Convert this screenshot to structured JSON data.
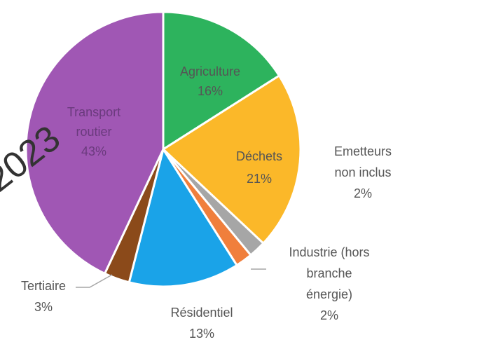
{
  "chart_data": {
    "type": "pie",
    "title": "",
    "slices": [
      {
        "name": "Agriculture",
        "value": 16,
        "label_lines": [
          "Agriculture",
          "16%"
        ],
        "color": "#2db35d",
        "label_color": "#555555"
      },
      {
        "name": "Déchets",
        "value": 21,
        "label_lines": [
          "Déchets",
          "21%"
        ],
        "color": "#fbb829",
        "label_color": "#555555"
      },
      {
        "name": "Emetteurs non inclus",
        "value": 2,
        "label_lines": [
          "Emetteurs",
          "non inclus",
          "2%"
        ],
        "color": "#a6a6a6",
        "label_color": "#555555"
      },
      {
        "name": "Industrie (hors branche énergie)",
        "value": 2,
        "label_lines": [
          "Industrie (hors",
          "branche",
          "énergie)",
          "2%"
        ],
        "color": "#f07f3c",
        "label_color": "#555555"
      },
      {
        "name": "Résidentiel",
        "value": 13,
        "label_lines": [
          "Résidentiel",
          "13%"
        ],
        "color": "#1aa3e8",
        "label_color": "#555555"
      },
      {
        "name": "Tertiaire",
        "value": 3,
        "label_lines": [
          "Tertiaire",
          "3%"
        ],
        "color": "#8b4a1a",
        "label_color": "#555555"
      },
      {
        "name": "Transport routier",
        "value": 43,
        "label_lines": [
          "Transport",
          "routier",
          "43%"
        ],
        "color": "#a057b4",
        "label_color": "#6a3a7d"
      }
    ],
    "watermark_year": "2023",
    "start_angle_deg": 0,
    "direction": "clockwise",
    "legend": "none"
  }
}
